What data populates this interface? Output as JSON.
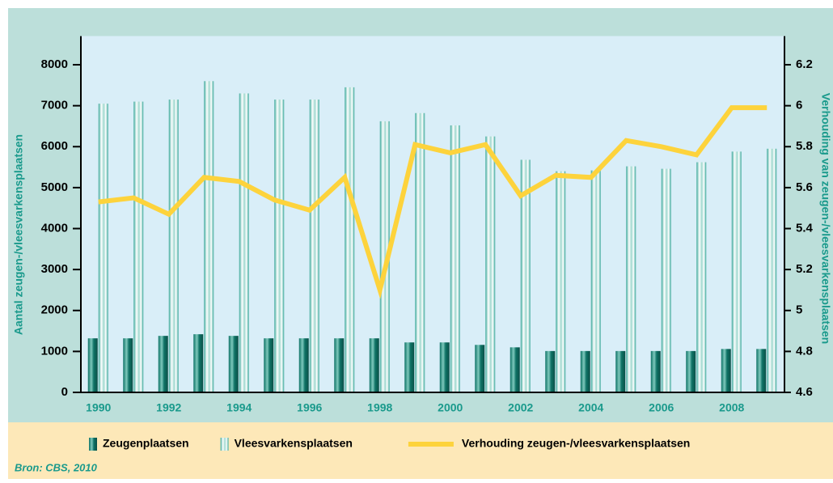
{
  "chart_data": {
    "type": "bar",
    "y_label": "Aantal zeugen-/vleesvarkensplaatsen",
    "y2_label": "Verhouding van zeugen-/vleesvarkensplaatsen",
    "source": "Bron: CBS, 2010",
    "categories": [
      "1990",
      null,
      "1992",
      null,
      "1994",
      null,
      "1996",
      null,
      "1998",
      null,
      "2000",
      null,
      "2002",
      null,
      "2004",
      null,
      "2006",
      null,
      "2008",
      null
    ],
    "series": [
      {
        "name": "Zeugenplaatsen",
        "type": "bar",
        "color": "#0f7366",
        "values": [
          1320,
          1320,
          1380,
          1420,
          1380,
          1320,
          1320,
          1320,
          1320,
          1220,
          1220,
          1160,
          1100,
          1010,
          1010,
          1010,
          1010,
          1010,
          1060,
          1060
        ]
      },
      {
        "name": "Vleesvarkensplaatsen",
        "type": "bar",
        "color": "#3aa89a",
        "values": [
          7050,
          7100,
          7150,
          7600,
          7300,
          7150,
          7150,
          7450,
          6620,
          6820,
          6520,
          6250,
          5680,
          5400,
          5420,
          5520,
          5460,
          5620,
          5880,
          5950
        ]
      },
      {
        "name": "Verhouding zeugen-/vleesvarkensplaatsen",
        "type": "line",
        "axis": "y2",
        "color": "#fdd33c",
        "values": [
          5.53,
          5.55,
          5.47,
          5.65,
          5.63,
          5.54,
          5.49,
          5.65,
          5.1,
          5.81,
          5.77,
          5.81,
          5.56,
          5.66,
          5.65,
          5.83,
          5.8,
          5.76,
          5.99,
          5.99
        ]
      }
    ],
    "ylim": [
      0,
      8700
    ],
    "yticks": [
      0,
      1000,
      2000,
      3000,
      4000,
      5000,
      6000,
      7000,
      8000
    ],
    "y2lim": [
      4.6,
      6.34
    ],
    "y2ticks": [
      4.6,
      4.8,
      5,
      5.2,
      5.4,
      5.6,
      5.8,
      6,
      6.2
    ]
  }
}
